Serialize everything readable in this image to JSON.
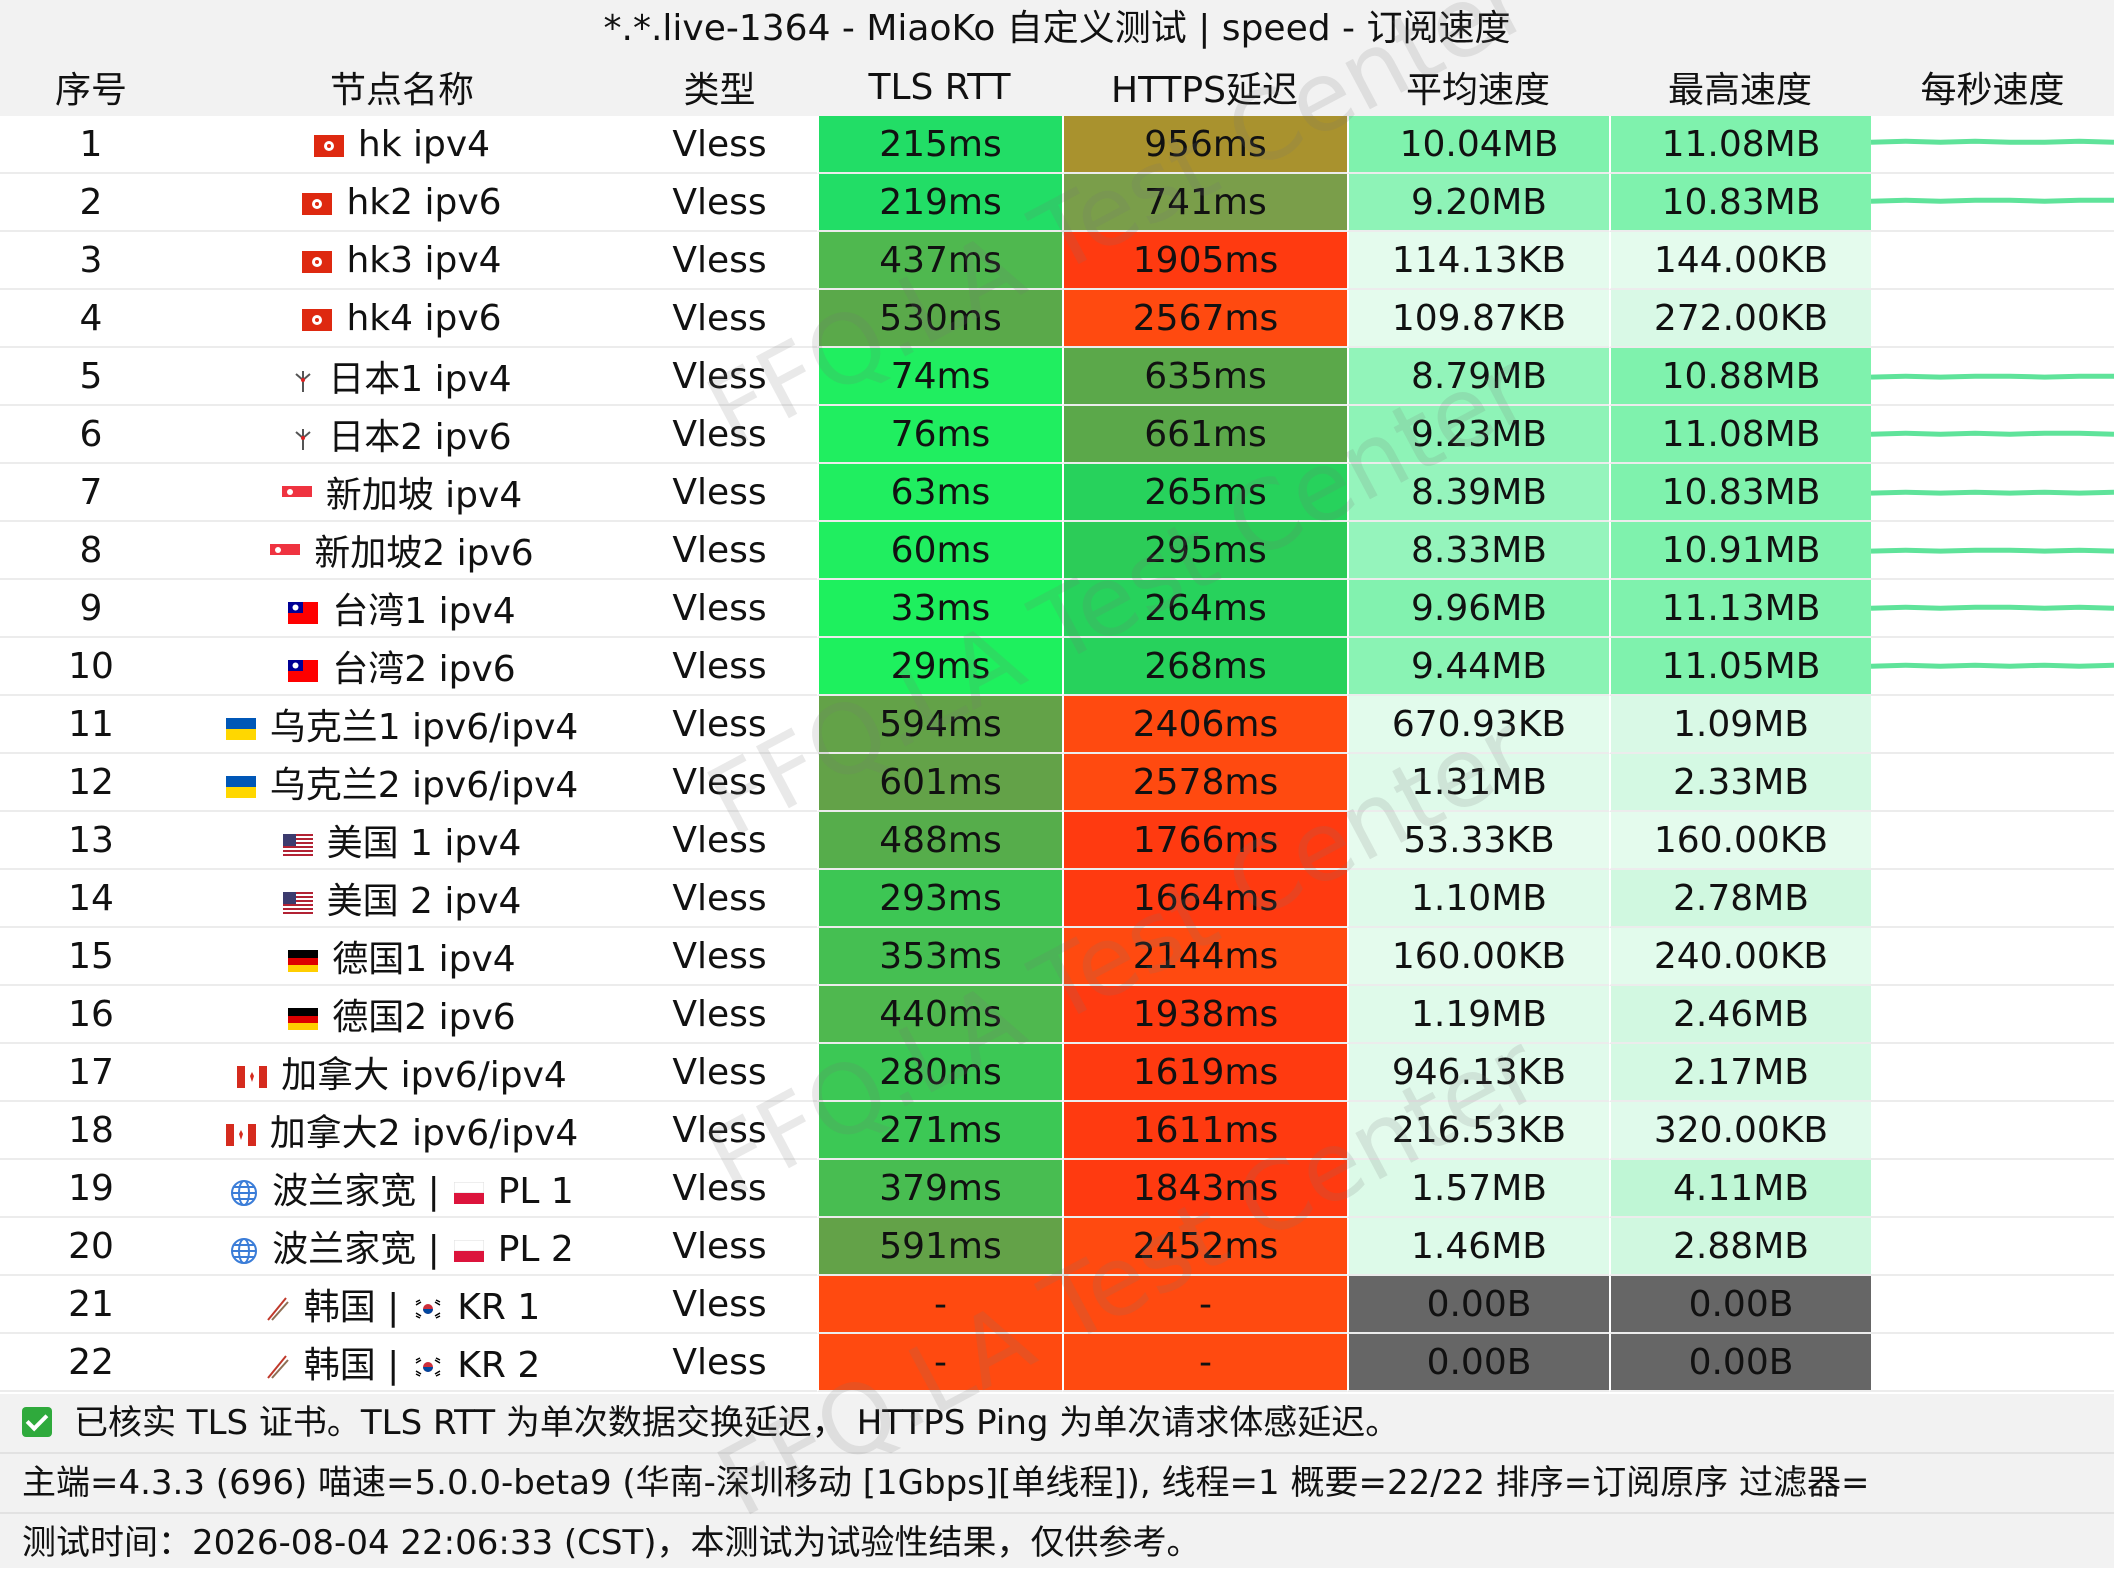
{
  "title": "*.*.live-1364 - MiaoKo 自定义测试 | speed - 订阅速度",
  "watermark": "FFQ.LA Test Center",
  "columns": {
    "index": "序号",
    "name": "节点名称",
    "type": "类型",
    "tls_rtt": "TLS RTT",
    "https_delay": "HTTPS延迟",
    "avg_speed": "平均速度",
    "max_speed": "最高速度",
    "per_sec_speed": "每秒速度"
  },
  "rows": [
    {
      "idx": "1",
      "flag": "hk",
      "name": "hk ipv4",
      "type": "Vless",
      "tls": "215ms",
      "https": "956ms",
      "avg": "10.04MB",
      "max": "11.08MB",
      "tls_color": "#22dd66",
      "https_color": "#a9922e",
      "avg_color": "#7ff2ad",
      "max_color": "#7ff2ad",
      "spark": [
        0.5,
        0.55,
        0.5,
        0.55,
        0.5,
        0.5,
        0.55,
        0.5
      ]
    },
    {
      "idx": "2",
      "flag": "hk",
      "name": "hk2 ipv6",
      "type": "Vless",
      "tls": "219ms",
      "https": "741ms",
      "avg": "9.20MB",
      "max": "10.83MB",
      "tls_color": "#22dd66",
      "https_color": "#7a9e4a",
      "avg_color": "#8ef3b7",
      "max_color": "#7ff2ad",
      "spark": [
        0.45,
        0.5,
        0.45,
        0.5,
        0.5,
        0.45,
        0.5,
        0.5
      ]
    },
    {
      "idx": "3",
      "flag": "hk",
      "name": "hk3 ipv4",
      "type": "Vless",
      "tls": "437ms",
      "https": "1905ms",
      "avg": "114.13KB",
      "max": "144.00KB",
      "tls_color": "#4fb84f",
      "https_color": "#ff3a10",
      "avg_color": "#e4fbed",
      "max_color": "#e4fbed",
      "spark": []
    },
    {
      "idx": "4",
      "flag": "hk",
      "name": "hk4 ipv6",
      "type": "Vless",
      "tls": "530ms",
      "https": "2567ms",
      "avg": "109.87KB",
      "max": "272.00KB",
      "tls_color": "#5aa94a",
      "https_color": "#ff4a10",
      "avg_color": "#e4fbed",
      "max_color": "#d9f9e6",
      "spark": []
    },
    {
      "idx": "5",
      "flag": "jp",
      "name": "日本1 ipv4",
      "type": "Vless",
      "tls": "74ms",
      "https": "635ms",
      "avg": "8.79MB",
      "max": "10.88MB",
      "tls_color": "#20ee60",
      "https_color": "#5ba84a",
      "avg_color": "#92f4ba",
      "max_color": "#7ff2ad",
      "spark": [
        0.35,
        0.4,
        0.35,
        0.4,
        0.4,
        0.35,
        0.4,
        0.4
      ]
    },
    {
      "idx": "6",
      "flag": "jp",
      "name": "日本2 ipv6",
      "type": "Vless",
      "tls": "76ms",
      "https": "661ms",
      "avg": "9.23MB",
      "max": "11.08MB",
      "tls_color": "#20ee60",
      "https_color": "#5ba84a",
      "avg_color": "#8ef3b7",
      "max_color": "#7ff2ad",
      "spark": [
        0.4,
        0.45,
        0.4,
        0.45,
        0.4,
        0.45,
        0.45,
        0.4
      ]
    },
    {
      "idx": "7",
      "flag": "sg",
      "name": "新加坡 ipv4",
      "type": "Vless",
      "tls": "63ms",
      "https": "265ms",
      "avg": "8.39MB",
      "max": "10.83MB",
      "tls_color": "#20ee60",
      "https_color": "#27d25c",
      "avg_color": "#95f4bc",
      "max_color": "#7ff2ad",
      "spark": [
        0.35,
        0.4,
        0.35,
        0.4,
        0.35,
        0.4,
        0.35,
        0.4
      ]
    },
    {
      "idx": "8",
      "flag": "sg",
      "name": "新加坡2 ipv6",
      "type": "Vless",
      "tls": "60ms",
      "https": "295ms",
      "avg": "8.33MB",
      "max": "10.91MB",
      "tls_color": "#20ee60",
      "https_color": "#2ccc58",
      "avg_color": "#95f4bc",
      "max_color": "#7ff2ad",
      "spark": [
        0.35,
        0.4,
        0.35,
        0.4,
        0.4,
        0.35,
        0.4,
        0.35
      ]
    },
    {
      "idx": "9",
      "flag": "tw",
      "name": "台湾1 ipv4",
      "type": "Vless",
      "tls": "33ms",
      "https": "264ms",
      "avg": "9.96MB",
      "max": "11.13MB",
      "tls_color": "#1ef05e",
      "https_color": "#27d25c",
      "avg_color": "#82f2af",
      "max_color": "#7ff2ad",
      "spark": [
        0.4,
        0.45,
        0.4,
        0.45,
        0.45,
        0.4,
        0.45,
        0.4
      ]
    },
    {
      "idx": "10",
      "flag": "tw",
      "name": "台湾2 ipv6",
      "type": "Vless",
      "tls": "29ms",
      "https": "268ms",
      "avg": "9.44MB",
      "max": "11.05MB",
      "tls_color": "#1ef05e",
      "https_color": "#27d25c",
      "avg_color": "#8af3b4",
      "max_color": "#7ff2ad",
      "spark": [
        0.4,
        0.45,
        0.4,
        0.45,
        0.4,
        0.45,
        0.4,
        0.45
      ]
    },
    {
      "idx": "11",
      "flag": "ua",
      "name": "乌克兰1  ipv6/ipv4",
      "type": "Vless",
      "tls": "594ms",
      "https": "2406ms",
      "avg": "670.93KB",
      "max": "1.09MB",
      "tls_color": "#63a248",
      "https_color": "#ff4a10",
      "avg_color": "#e2fbec",
      "max_color": "#d9f9e6",
      "spark": []
    },
    {
      "idx": "12",
      "flag": "ua",
      "name": "乌克兰2 ipv6/ipv4",
      "type": "Vless",
      "tls": "601ms",
      "https": "2578ms",
      "avg": "1.31MB",
      "max": "2.33MB",
      "tls_color": "#63a248",
      "https_color": "#ff4a10",
      "avg_color": "#dffaea",
      "max_color": "#d4f9e3",
      "spark": []
    },
    {
      "idx": "13",
      "flag": "us",
      "name": "美国 1 ipv4",
      "type": "Vless",
      "tls": "488ms",
      "https": "1766ms",
      "avg": "53.33KB",
      "max": "160.00KB",
      "tls_color": "#56ad4b",
      "https_color": "#ff3a10",
      "avg_color": "#e6fbee",
      "max_color": "#e4fbed",
      "spark": []
    },
    {
      "idx": "14",
      "flag": "us",
      "name": "美国 2 ipv4",
      "type": "Vless",
      "tls": "293ms",
      "https": "1664ms",
      "avg": "1.10MB",
      "max": "2.78MB",
      "tls_color": "#3dc654",
      "https_color": "#ff3a10",
      "avg_color": "#dffaea",
      "max_color": "#d0f8e0",
      "spark": []
    },
    {
      "idx": "15",
      "flag": "de",
      "name": "德国1 ipv4",
      "type": "Vless",
      "tls": "353ms",
      "https": "2144ms",
      "avg": "160.00KB",
      "max": "240.00KB",
      "tls_color": "#45bf52",
      "https_color": "#ff4a10",
      "avg_color": "#e4fbed",
      "max_color": "#e2fbec",
      "spark": []
    },
    {
      "idx": "16",
      "flag": "de",
      "name": "德国2 ipv6",
      "type": "Vless",
      "tls": "440ms",
      "https": "1938ms",
      "avg": "1.19MB",
      "max": "2.46MB",
      "tls_color": "#4fb84f",
      "https_color": "#ff3a10",
      "avg_color": "#dffaea",
      "max_color": "#d2f8e1",
      "spark": []
    },
    {
      "idx": "17",
      "flag": "ca",
      "name": "加拿大 ipv6/ipv4",
      "type": "Vless",
      "tls": "280ms",
      "https": "1619ms",
      "avg": "946.13KB",
      "max": "2.17MB",
      "tls_color": "#3cc855",
      "https_color": "#ff3a10",
      "avg_color": "#e0faeb",
      "max_color": "#d4f9e3",
      "spark": []
    },
    {
      "idx": "18",
      "flag": "ca",
      "name": "加拿大2 ipv6/ipv4",
      "type": "Vless",
      "tls": "271ms",
      "https": "1611ms",
      "avg": "216.53KB",
      "max": "320.00KB",
      "tls_color": "#3cc855",
      "https_color": "#ff3a10",
      "avg_color": "#e4fbed",
      "max_color": "#e0faeb",
      "spark": []
    },
    {
      "idx": "19",
      "flag": "globe",
      "name": "波兰家宽 |",
      "flag2": "pl",
      "name2": "PL 1",
      "type": "Vless",
      "tls": "379ms",
      "https": "1843ms",
      "avg": "1.57MB",
      "max": "4.11MB",
      "tls_color": "#48bd51",
      "https_color": "#ff3a10",
      "avg_color": "#dcfae8",
      "max_color": "#bff6d5",
      "spark": []
    },
    {
      "idx": "20",
      "flag": "globe",
      "name": "波兰家宽 |",
      "flag2": "pl",
      "name2": "PL 2",
      "type": "Vless",
      "tls": "591ms",
      "https": "2452ms",
      "avg": "1.46MB",
      "max": "2.88MB",
      "tls_color": "#63a248",
      "https_color": "#ff4a10",
      "avg_color": "#ddfae9",
      "max_color": "#d0f8e0",
      "spark": []
    },
    {
      "idx": "21",
      "flag": "chopsticks",
      "name": "韩国 |",
      "flag2": "kr",
      "name2": "KR 1",
      "type": "Vless",
      "tls": "-",
      "https": "-",
      "avg": "0.00B",
      "max": "0.00B",
      "tls_color": "#ff4a10",
      "https_color": "#ff4a10",
      "avg_color": "#666666",
      "max_color": "#666666",
      "spark": []
    },
    {
      "idx": "22",
      "flag": "chopsticks",
      "name": "韩国 |",
      "flag2": "kr",
      "name2": "KR 2",
      "type": "Vless",
      "tls": "-",
      "https": "-",
      "avg": "0.00B",
      "max": "0.00B",
      "tls_color": "#ff4a10",
      "https_color": "#ff4a10",
      "avg_color": "#666666",
      "max_color": "#666666",
      "spark": []
    }
  ],
  "footer": {
    "line1": "已核实 TLS 证书。TLS RTT 为单次数据交换延迟， HTTPS Ping 为单次请求体感延迟。",
    "line2": "主端=4.3.3 (696) 喵速=5.0.0-beta9 (华南-深圳移动 [1Gbps][单线程]), 线程=1 概要=22/22 排序=订阅原序 过滤器=",
    "line3": "测试时间：2026-08-04 22:06:33 (CST)，本测试为试验性结果，仅供参考。"
  },
  "colors": {
    "spark_line": "#5fe39a",
    "header_bg": "#f2f2f2",
    "check": "#2faa3c"
  }
}
